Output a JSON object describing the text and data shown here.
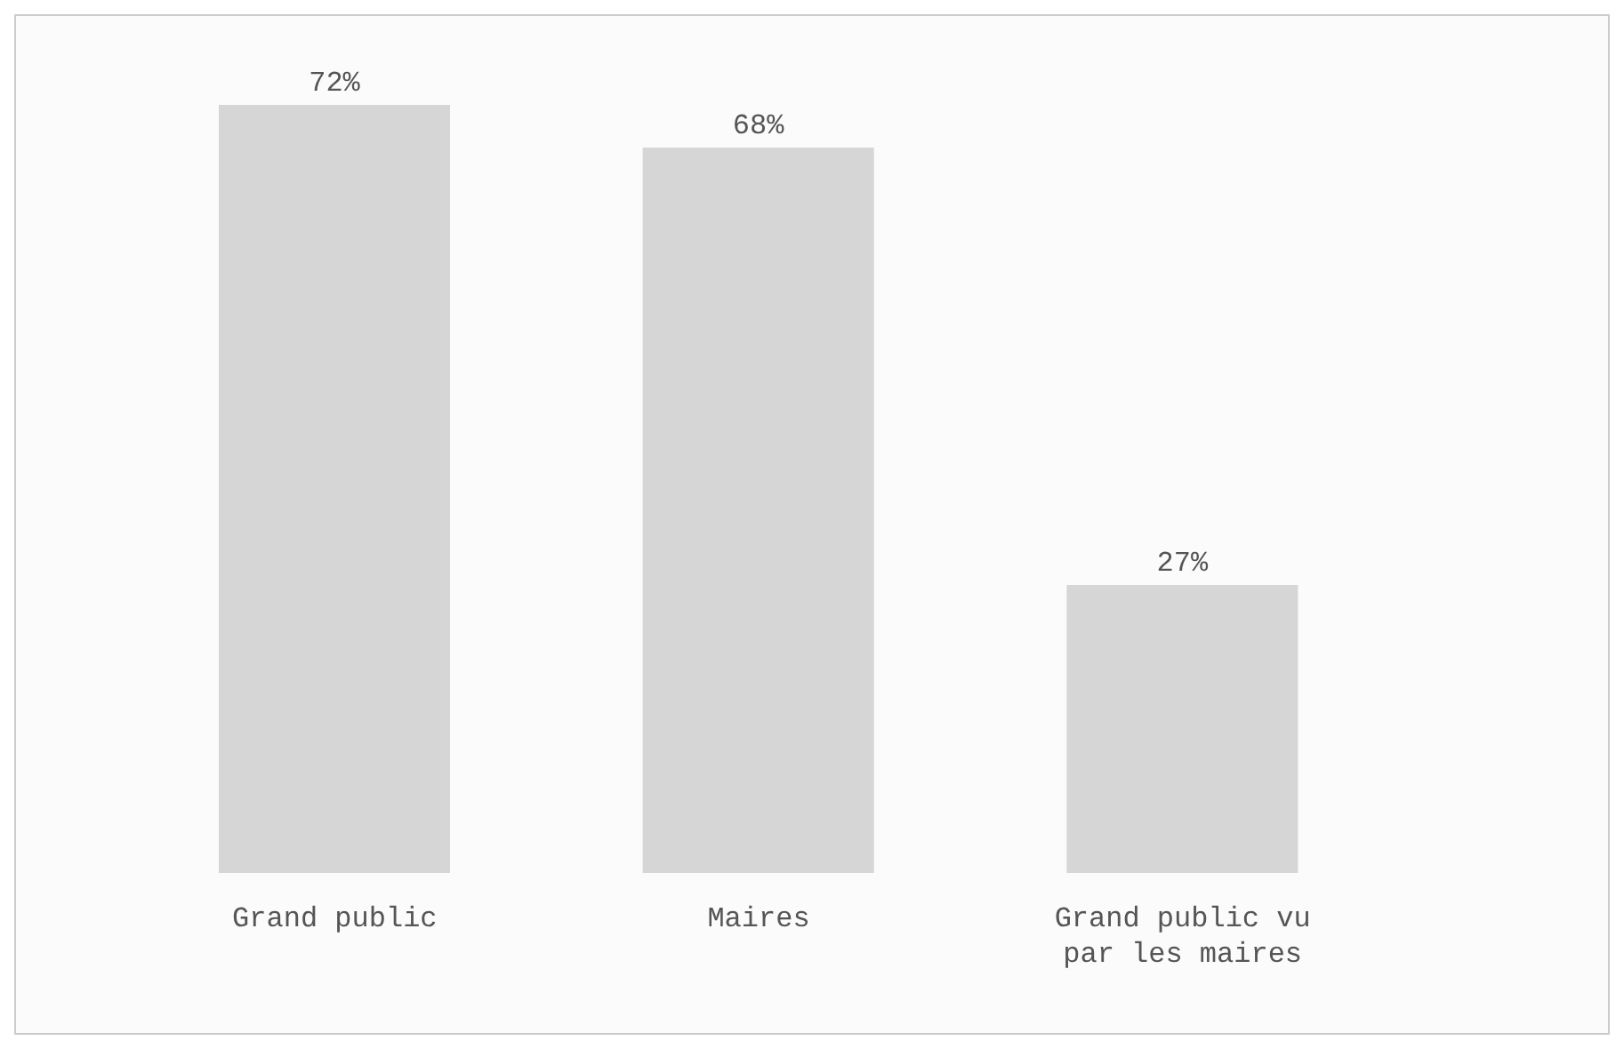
{
  "chart_data": {
    "type": "bar",
    "categories": [
      "Grand public",
      "Maires",
      "Grand public vu par les maires"
    ],
    "values": [
      72,
      68,
      27
    ],
    "color": "#d6d6d6",
    "value_labels": [
      "72%",
      "68%",
      "27%"
    ]
  }
}
